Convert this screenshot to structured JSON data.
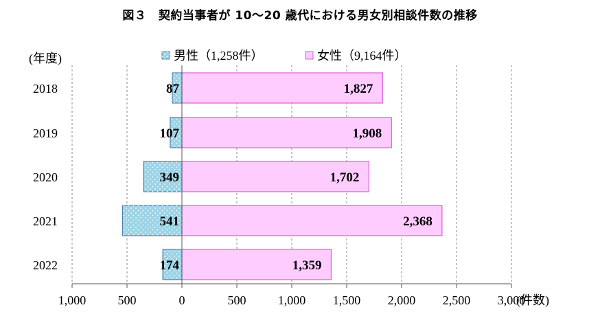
{
  "title": "図３　契約当事者が 10〜20 歳代における男女別相談件数の推移",
  "chart_data": {
    "type": "bar",
    "orientation": "horizontal",
    "stacked": "diverging",
    "categories_label": "(年度)",
    "categories": [
      "2018",
      "2019",
      "2020",
      "2021",
      "2022"
    ],
    "series": [
      {
        "name": "男性（1,258件）",
        "values": [
          87,
          107,
          349,
          541,
          174
        ],
        "value_labels": [
          "87",
          "107",
          "349",
          "541",
          "174"
        ],
        "direction": "left",
        "fill": "#9dd3e6",
        "stroke": "#4a7fa8",
        "pattern": "dots"
      },
      {
        "name": "女性（9,164件）",
        "values": [
          1827,
          1908,
          1702,
          2368,
          1359
        ],
        "value_labels": [
          "1,827",
          "1,908",
          "1,702",
          "2,368",
          "1,359"
        ],
        "direction": "right",
        "fill": "#ffccff",
        "stroke": "#d95fd9"
      }
    ],
    "x_axis": {
      "range": [
        -1000,
        3000
      ],
      "ticks": [
        -1000,
        -500,
        0,
        500,
        1000,
        1500,
        2000,
        2500,
        3000
      ],
      "tick_labels": [
        "1,000",
        "500",
        "0",
        "500",
        "1,000",
        "1,500",
        "2,000",
        "2,500",
        "3,000"
      ],
      "unit_label": "(件数)"
    },
    "grid": "vertical dashed",
    "legend": "top-center"
  }
}
